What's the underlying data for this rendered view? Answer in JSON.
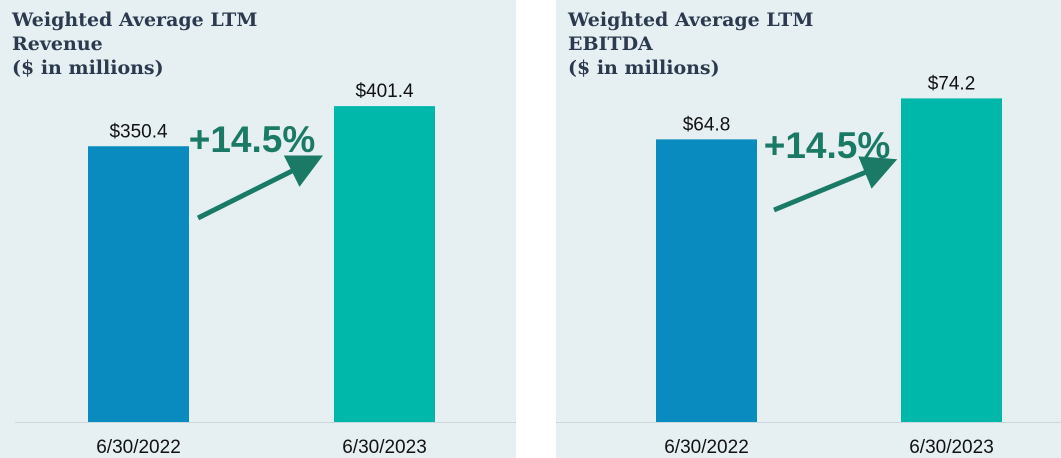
{
  "chart_data": [
    {
      "type": "bar",
      "title_lines": [
        "Weighted Average LTM",
        "Revenue",
        "($ in millions)"
      ],
      "categories": [
        "6/30/2022",
        "6/30/2023"
      ],
      "values": [
        350.4,
        401.4
      ],
      "value_labels": [
        "$350.4",
        "$401.4"
      ],
      "colors": [
        "#0a8bbf",
        "#00b8a9"
      ],
      "ylim": [
        0,
        460
      ],
      "growth_label": "+14.5%"
    },
    {
      "type": "bar",
      "title_lines": [
        "Weighted Average LTM",
        "EBITDA",
        "($ in millions)"
      ],
      "categories": [
        "6/30/2022",
        "6/30/2023"
      ],
      "values": [
        64.8,
        74.2
      ],
      "value_labels": [
        "$64.8",
        "$74.2"
      ],
      "colors": [
        "#0a8bbf",
        "#00b8a9"
      ],
      "ylim": [
        0,
        83
      ],
      "growth_label": "+14.5%"
    }
  ],
  "colors": {
    "panel_bg": "#e6f0f3",
    "growth": "#1a7a66",
    "title": "#2b3a4e"
  }
}
